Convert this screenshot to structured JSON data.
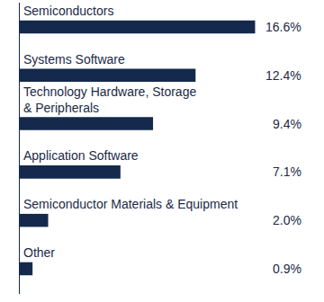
{
  "chart_data": {
    "type": "bar",
    "orientation": "horizontal",
    "categories": [
      "Semiconductors",
      "Systems Software",
      "Technology Hardware, Storage\n& Peripherals",
      "Application Software",
      "Semiconductor Materials & Equipment",
      "Other"
    ],
    "values": [
      16.6,
      12.4,
      9.4,
      7.1,
      2.0,
      0.9
    ],
    "value_labels": [
      "16.6%",
      "12.4%",
      "9.4%",
      "7.1%",
      "2.0%",
      "0.9%"
    ],
    "data_labels": true,
    "tick_labels": false,
    "grid": false,
    "color": "#14294b",
    "xlim": [
      0,
      20
    ]
  }
}
